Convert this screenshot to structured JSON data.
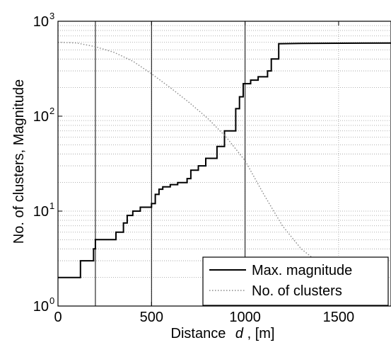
{
  "chart_data": {
    "type": "line",
    "xlabel": "Distance",
    "xlabel_var": "d",
    "xlabel_unit": ", [m]",
    "ylabel": "No. of clusters, Magnitude",
    "xlim": [
      0,
      1780
    ],
    "ylim": [
      1,
      1000
    ],
    "yscale": "log",
    "grid": "dotted horizontal minor + vertical at tick marks",
    "x_ticks": [
      "0",
      "500",
      "1000",
      "1500"
    ],
    "x_tick_values": [
      0,
      500,
      1000,
      1500
    ],
    "y_ticks": [
      {
        "base": "10",
        "exp": "0",
        "value": 1
      },
      {
        "base": "10",
        "exp": "1",
        "value": 10
      },
      {
        "base": "10",
        "exp": "2",
        "value": 100
      },
      {
        "base": "10",
        "exp": "3",
        "value": 1000
      }
    ],
    "reference_lines_x": [
      200,
      500,
      1000
    ],
    "legend_position": "bottom-right",
    "series": [
      {
        "name": "Max. magnitude",
        "style": "solid",
        "color": "#000000",
        "points": [
          [
            0,
            2
          ],
          [
            120,
            2
          ],
          [
            120,
            3
          ],
          [
            190,
            3
          ],
          [
            190,
            4
          ],
          [
            200,
            4
          ],
          [
            200,
            5
          ],
          [
            310,
            5
          ],
          [
            310,
            6
          ],
          [
            350,
            6
          ],
          [
            350,
            7.5
          ],
          [
            370,
            7.5
          ],
          [
            370,
            9
          ],
          [
            400,
            9
          ],
          [
            400,
            10
          ],
          [
            440,
            10
          ],
          [
            440,
            11
          ],
          [
            500,
            11
          ],
          [
            500,
            12
          ],
          [
            520,
            12
          ],
          [
            520,
            15
          ],
          [
            540,
            15
          ],
          [
            540,
            17
          ],
          [
            560,
            17
          ],
          [
            560,
            18
          ],
          [
            600,
            18
          ],
          [
            600,
            19
          ],
          [
            640,
            19
          ],
          [
            640,
            20
          ],
          [
            690,
            20
          ],
          [
            690,
            22
          ],
          [
            710,
            22
          ],
          [
            710,
            27
          ],
          [
            750,
            27
          ],
          [
            750,
            30
          ],
          [
            790,
            30
          ],
          [
            790,
            36
          ],
          [
            850,
            36
          ],
          [
            850,
            48
          ],
          [
            890,
            48
          ],
          [
            890,
            70
          ],
          [
            950,
            70
          ],
          [
            950,
            120
          ],
          [
            970,
            120
          ],
          [
            970,
            160
          ],
          [
            990,
            160
          ],
          [
            990,
            220
          ],
          [
            1030,
            220
          ],
          [
            1030,
            240
          ],
          [
            1070,
            240
          ],
          [
            1070,
            260
          ],
          [
            1120,
            260
          ],
          [
            1120,
            300
          ],
          [
            1140,
            300
          ],
          [
            1140,
            400
          ],
          [
            1180,
            400
          ],
          [
            1180,
            580
          ],
          [
            1300,
            585
          ],
          [
            1780,
            590
          ]
        ]
      },
      {
        "name": "No. of clusters",
        "style": "dotted",
        "color": "#888888",
        "points": [
          [
            0,
            600
          ],
          [
            100,
            590
          ],
          [
            200,
            540
          ],
          [
            300,
            470
          ],
          [
            400,
            380
          ],
          [
            500,
            280
          ],
          [
            600,
            200
          ],
          [
            700,
            140
          ],
          [
            800,
            95
          ],
          [
            900,
            60
          ],
          [
            1000,
            34
          ],
          [
            1100,
            15
          ],
          [
            1200,
            7
          ],
          [
            1300,
            4
          ],
          [
            1400,
            2.8
          ],
          [
            1500,
            2.2
          ]
        ]
      }
    ]
  }
}
